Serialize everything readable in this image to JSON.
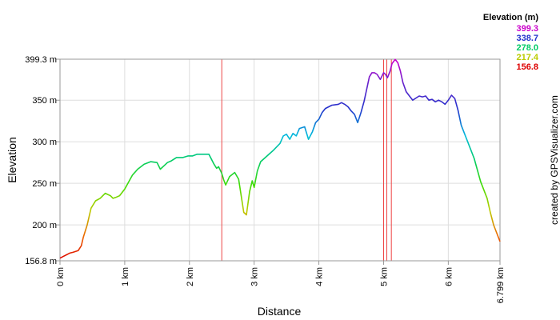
{
  "chart_data": {
    "type": "line",
    "xlabel": "Distance",
    "ylabel": "Elevation",
    "credit": "created by GPSVisualizer.com",
    "xlim": [
      0,
      6.799
    ],
    "ylim": [
      156.8,
      399.3
    ],
    "x_ticks": [
      {
        "value": 0,
        "label": "0 km"
      },
      {
        "value": 1,
        "label": "1 km"
      },
      {
        "value": 2,
        "label": "2 km"
      },
      {
        "value": 3,
        "label": "3 km"
      },
      {
        "value": 4,
        "label": "4 km"
      },
      {
        "value": 5,
        "label": "5 km"
      },
      {
        "value": 6,
        "label": "6 km"
      },
      {
        "value": 6.799,
        "label": "6.799 km"
      }
    ],
    "y_ticks": [
      {
        "value": 156.8,
        "label": "156.8 m"
      },
      {
        "value": 200,
        "label": "200 m"
      },
      {
        "value": 250,
        "label": "250 m"
      },
      {
        "value": 300,
        "label": "300 m"
      },
      {
        "value": 350,
        "label": "350 m"
      },
      {
        "value": 399.3,
        "label": "399.3 m"
      }
    ],
    "legend": {
      "title": "Elevation (m)",
      "placement": "top-right",
      "entries": [
        {
          "label": "399.3",
          "color": "#cc00cc"
        },
        {
          "label": "338.7",
          "color": "#2233cc"
        },
        {
          "label": "278.0",
          "color": "#00cc66"
        },
        {
          "label": "217.4",
          "color": "#bbcc00"
        },
        {
          "label": "156.8",
          "color": "#dd0000"
        }
      ]
    },
    "markers_km": [
      0,
      2.5,
      5.0,
      5.05,
      5.12
    ],
    "series": [
      {
        "x": [
          0,
          0.05,
          0.1,
          0.15,
          0.2,
          0.28,
          0.33,
          0.36,
          0.42,
          0.48,
          0.55,
          0.62,
          0.7,
          0.78,
          0.82,
          0.86,
          0.92,
          1.0,
          1.05,
          1.12,
          1.2,
          1.3,
          1.4,
          1.5,
          1.55,
          1.62,
          1.66,
          1.72,
          1.8,
          1.9,
          1.98,
          2.05,
          2.12,
          2.2,
          2.3,
          2.38,
          2.42,
          2.45,
          2.5,
          2.53,
          2.56,
          2.62,
          2.7,
          2.76,
          2.8,
          2.84,
          2.88,
          2.93,
          2.97,
          3.0,
          3.05,
          3.1,
          3.2,
          3.3,
          3.4,
          3.45,
          3.5,
          3.55,
          3.6,
          3.65,
          3.7,
          3.78,
          3.84,
          3.9,
          3.95,
          4.0,
          4.05,
          4.1,
          4.2,
          4.3,
          4.35,
          4.4,
          4.45,
          4.5,
          4.55,
          4.6,
          4.65,
          4.7,
          4.78,
          4.82,
          4.86,
          4.9,
          4.95,
          5.0,
          5.03,
          5.06,
          5.1,
          5.13,
          5.18,
          5.22,
          5.26,
          5.3,
          5.35,
          5.4,
          5.45,
          5.55,
          5.6,
          5.65,
          5.7,
          5.75,
          5.8,
          5.85,
          5.9,
          5.95,
          6.0,
          6.05,
          6.1,
          6.15,
          6.2,
          6.3,
          6.4,
          6.5,
          6.6,
          6.65,
          6.7,
          6.75,
          6.799
        ],
        "values": [
          160,
          162,
          164,
          166,
          167,
          169,
          175,
          185,
          200,
          220,
          229,
          232,
          238,
          235,
          232,
          233,
          235,
          243,
          250,
          260,
          267,
          273,
          276,
          275,
          267,
          272,
          275,
          277,
          281,
          281,
          283,
          283,
          285,
          285,
          285,
          273,
          268,
          270,
          262,
          254,
          248,
          258,
          263,
          255,
          235,
          215,
          212,
          240,
          253,
          245,
          265,
          276,
          283,
          290,
          298,
          307,
          309,
          303,
          310,
          307,
          316,
          318,
          303,
          312,
          323,
          327,
          335,
          340,
          344,
          345,
          347,
          345,
          342,
          337,
          333,
          323,
          335,
          349,
          378,
          383,
          383,
          381,
          375,
          383,
          381,
          377,
          385,
          394,
          399,
          395,
          385,
          371,
          360,
          355,
          350,
          355,
          354,
          355,
          350,
          351,
          348,
          350,
          348,
          345,
          350,
          356,
          352,
          338,
          320,
          300,
          280,
          252,
          232,
          215,
          200,
          190,
          180
        ]
      }
    ]
  }
}
